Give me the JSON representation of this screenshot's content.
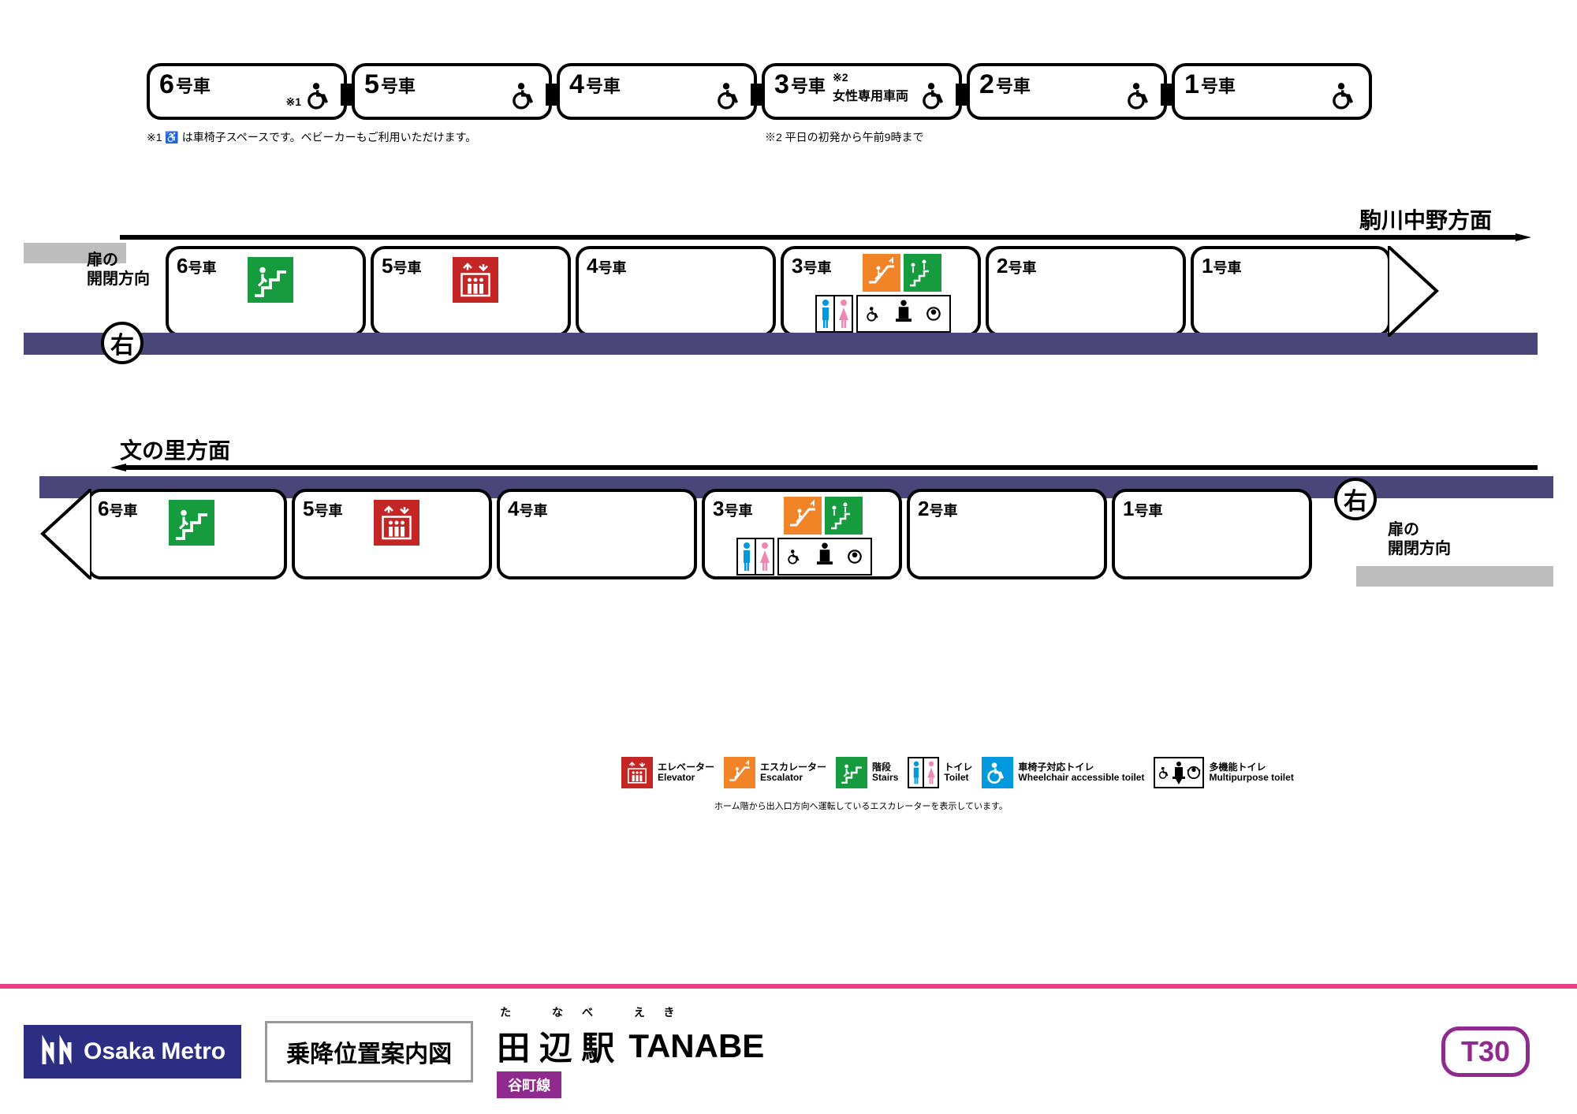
{
  "colors": {
    "purple": "#4a4679",
    "green": "#169c3f",
    "red": "#c42525",
    "orange": "#f08427",
    "blue": "#0099dd",
    "pink": "#f286b3",
    "magenta": "#e8418c",
    "linePurple": "#912a8e",
    "navy": "#2b2e83",
    "gray": "#bdbdbd"
  },
  "topCars": [
    {
      "num": "6",
      "label": "号車",
      "note1": "※1"
    },
    {
      "num": "5",
      "label": "号車"
    },
    {
      "num": "4",
      "label": "号車"
    },
    {
      "num": "3",
      "label": "号車",
      "note2": "※2",
      "sub": "女性専用車両"
    },
    {
      "num": "2",
      "label": "号車"
    },
    {
      "num": "1",
      "label": "号車"
    }
  ],
  "footnote1": "※1 ♿ は車椅子スペースです。ベビーカーもご利用いただけます。",
  "footnote2": "※2 平日の初発から午前9時まで",
  "plat1": {
    "direction": "駒川中野方面",
    "door": "扉の\n開閉方向",
    "side": "右",
    "cars": [
      {
        "num": "6",
        "label": "号車",
        "icons": [
          "stairs"
        ]
      },
      {
        "num": "5",
        "label": "号車",
        "icons": [
          "elevator"
        ]
      },
      {
        "num": "4",
        "label": "号車",
        "icons": []
      },
      {
        "num": "3",
        "label": "号車",
        "icons": [
          "escalator",
          "stairs-dbl",
          "toilet",
          "wc-toilet",
          "multi-toilet"
        ]
      },
      {
        "num": "2",
        "label": "号車",
        "icons": []
      },
      {
        "num": "1",
        "label": "号車",
        "icons": []
      }
    ]
  },
  "plat2": {
    "direction": "文の里方面",
    "door": "扉の\n開閉方向",
    "side": "右",
    "cars": [
      {
        "num": "6",
        "label": "号車",
        "icons": [
          "stairs"
        ]
      },
      {
        "num": "5",
        "label": "号車",
        "icons": [
          "elevator"
        ]
      },
      {
        "num": "4",
        "label": "号車",
        "icons": []
      },
      {
        "num": "3",
        "label": "号車",
        "icons": [
          "escalator",
          "stairs-dbl",
          "toilet",
          "wc-toilet",
          "multi-toilet"
        ]
      },
      {
        "num": "2",
        "label": "号車",
        "icons": []
      },
      {
        "num": "1",
        "label": "号車",
        "icons": []
      }
    ]
  },
  "legend": [
    {
      "icon": "elevator",
      "jp": "エレベーター",
      "en": "Elevator"
    },
    {
      "icon": "escalator",
      "jp": "エスカレーター",
      "en": "Escalator"
    },
    {
      "icon": "stairs",
      "jp": "階段",
      "en": "Stairs"
    },
    {
      "icon": "toilet",
      "jp": "トイレ",
      "en": "Toilet"
    },
    {
      "icon": "wc-toilet",
      "jp": "車椅子対応トイレ",
      "en": "Wheelchair accessible toilet"
    },
    {
      "icon": "multi-toilet",
      "jp": "多機能トイレ",
      "en": "Multipurpose toilet"
    }
  ],
  "legendNote": "ホーム階から出入口方向へ運転しているエスカレーターを表示しています。",
  "footer": {
    "brand": "Osaka Metro",
    "boarding": "乗降位置案内図",
    "furigana": "た なべ えき",
    "station": "田 辺 駅",
    "roman": "TANABE",
    "line": "谷町線",
    "code": "T30"
  }
}
